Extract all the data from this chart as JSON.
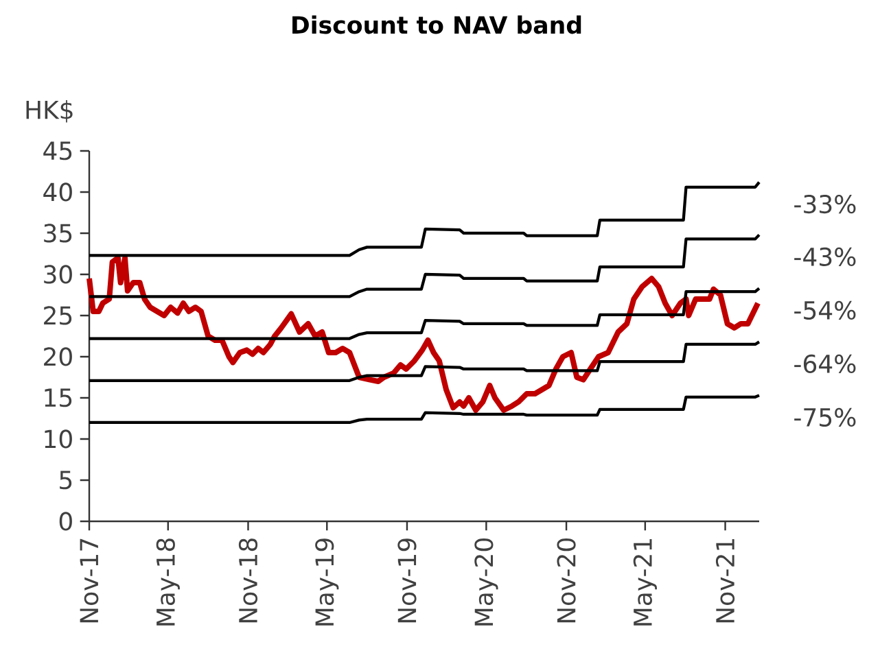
{
  "chart_data": {
    "type": "line",
    "title": "Discount to NAV band",
    "ylabel": "HK$",
    "xlim": [
      "2017-11-01",
      "2022-01-18"
    ],
    "ylim": [
      0,
      45
    ],
    "yticks": [
      0,
      5,
      10,
      15,
      20,
      25,
      30,
      35,
      40,
      45
    ],
    "xticks": [
      {
        "value": "2017-11",
        "label": "Nov-17"
      },
      {
        "value": "2018-05",
        "label": "May-18"
      },
      {
        "value": "2018-11",
        "label": "Nov-18"
      },
      {
        "value": "2019-05",
        "label": "May-19"
      },
      {
        "value": "2019-11",
        "label": "Nov-19"
      },
      {
        "value": "2020-05",
        "label": "May-20"
      },
      {
        "value": "2020-11",
        "label": "Nov-20"
      },
      {
        "value": "2021-05",
        "label": "May-21"
      },
      {
        "value": "2021-11",
        "label": "Nov-21"
      }
    ],
    "grid": false,
    "legend": false,
    "marker": "none",
    "line_style": "solid",
    "series": [
      {
        "color": "#c00000",
        "x": [
          "2017-11-01",
          "2017-11-10",
          "2017-11-23",
          "2017-12-02",
          "2017-12-17",
          "2017-12-24",
          "2018-01-06",
          "2018-01-12",
          "2018-01-22",
          "2018-01-28",
          "2018-02-10",
          "2018-02-25",
          "2018-03-08",
          "2018-03-21",
          "2018-04-06",
          "2018-04-22",
          "2018-05-07",
          "2018-05-23",
          "2018-06-05",
          "2018-06-18",
          "2018-07-03",
          "2018-07-16",
          "2018-08-01",
          "2018-08-17",
          "2018-09-02",
          "2018-09-18",
          "2018-09-27",
          "2018-10-13",
          "2018-10-29",
          "2018-11-11",
          "2018-11-24",
          "2018-12-06",
          "2018-12-22",
          "2019-01-01",
          "2019-01-16",
          "2019-02-08",
          "2019-02-27",
          "2019-03-09",
          "2019-03-19",
          "2019-04-04",
          "2019-04-20",
          "2019-05-05",
          "2019-05-21",
          "2019-06-06",
          "2019-06-22",
          "2019-07-14",
          "2019-08-08",
          "2019-08-27",
          "2019-09-09",
          "2019-10-01",
          "2019-10-17",
          "2019-10-30",
          "2019-11-18",
          "2019-12-06",
          "2019-12-19",
          "2020-01-01",
          "2020-01-14",
          "2020-01-30",
          "2020-02-15",
          "2020-03-01",
          "2020-03-10",
          "2020-03-22",
          "2020-04-07",
          "2020-04-23",
          "2020-05-09",
          "2020-05-21",
          "2020-06-10",
          "2020-06-29",
          "2020-07-14",
          "2020-08-02",
          "2020-08-21",
          "2020-09-06",
          "2020-09-22",
          "2020-10-08",
          "2020-10-24",
          "2020-11-12",
          "2020-11-25",
          "2020-12-10",
          "2020-12-26",
          "2021-01-14",
          "2021-02-05",
          "2021-02-28",
          "2021-03-20",
          "2021-04-05",
          "2021-04-24",
          "2021-05-16",
          "2021-06-01",
          "2021-06-16",
          "2021-07-02",
          "2021-07-21",
          "2021-08-03",
          "2021-08-09",
          "2021-08-25",
          "2021-09-13",
          "2021-09-26",
          "2021-10-05",
          "2021-10-21",
          "2021-11-06",
          "2021-11-22",
          "2021-12-07",
          "2021-12-23",
          "2022-01-15"
        ],
        "values": [
          29.5,
          25.5,
          25.5,
          26.5,
          27,
          31.5,
          32,
          29,
          32,
          28,
          29,
          29,
          27,
          26,
          25.5,
          25,
          26,
          25.3,
          26.5,
          25.5,
          26,
          25.5,
          22.5,
          22,
          22,
          20,
          19.3,
          20.5,
          20.8,
          20.3,
          21,
          20.5,
          21.5,
          22.5,
          23.5,
          25.2,
          23,
          23.5,
          24,
          22.5,
          23,
          20.5,
          20.5,
          21,
          20.5,
          17.5,
          17.2,
          17,
          17.5,
          18,
          19,
          18.5,
          19.5,
          20.8,
          22,
          20.5,
          19.5,
          16,
          13.8,
          14.5,
          14,
          15,
          13.5,
          14.5,
          16.5,
          15,
          13.5,
          14,
          14.5,
          15.5,
          15.5,
          16,
          16.5,
          18.5,
          20,
          20.5,
          17.5,
          17.2,
          18.5,
          20,
          20.5,
          23,
          24,
          27,
          28.5,
          29.5,
          28.5,
          26.5,
          25,
          26.5,
          27,
          25,
          27,
          27,
          27,
          28.2,
          27.5,
          24,
          23.5,
          24,
          24,
          26.5
        ]
      },
      {
        "name": "-33%",
        "color": "#000000",
        "x": [
          "2017-11-01",
          "2019-06-22",
          "2019-07-14",
          "2019-08-01",
          "2019-12-04",
          "2019-12-13",
          "2020-03-01",
          "2020-03-10",
          "2020-07-26",
          "2020-08-02",
          "2021-01-11",
          "2021-01-17",
          "2021-07-28",
          "2021-08-03",
          "2022-01-09",
          "2022-01-18"
        ],
        "values": [
          32.3,
          32.3,
          33.0,
          33.3,
          33.3,
          35.5,
          35.4,
          35.0,
          35.0,
          34.7,
          34.7,
          36.6,
          36.6,
          40.6,
          40.6,
          41.2
        ]
      },
      {
        "name": "-43%",
        "color": "#000000",
        "x": [
          "2017-11-01",
          "2019-06-22",
          "2019-07-14",
          "2019-08-01",
          "2019-12-04",
          "2019-12-13",
          "2020-03-01",
          "2020-03-10",
          "2020-07-26",
          "2020-08-02",
          "2021-01-11",
          "2021-01-17",
          "2021-07-28",
          "2021-08-03",
          "2022-01-09",
          "2022-01-18"
        ],
        "values": [
          27.3,
          27.3,
          27.9,
          28.2,
          28.2,
          30.0,
          29.9,
          29.5,
          29.5,
          29.2,
          29.2,
          30.9,
          30.9,
          34.3,
          34.3,
          34.8
        ]
      },
      {
        "name": "-54%",
        "color": "#000000",
        "x": [
          "2017-11-01",
          "2019-06-22",
          "2019-07-14",
          "2019-08-01",
          "2019-12-04",
          "2019-12-13",
          "2020-03-01",
          "2020-03-10",
          "2020-07-26",
          "2020-08-02",
          "2021-01-11",
          "2021-01-17",
          "2021-07-28",
          "2021-08-03",
          "2022-01-09",
          "2022-01-18"
        ],
        "values": [
          22.2,
          22.2,
          22.7,
          22.9,
          22.9,
          24.4,
          24.3,
          24.0,
          24.0,
          23.8,
          23.8,
          25.1,
          25.1,
          27.9,
          27.9,
          28.3
        ]
      },
      {
        "name": "-64%",
        "color": "#000000",
        "x": [
          "2017-11-01",
          "2019-06-22",
          "2019-07-14",
          "2019-08-01",
          "2019-12-04",
          "2019-12-13",
          "2020-03-01",
          "2020-03-10",
          "2020-07-26",
          "2020-08-02",
          "2021-01-11",
          "2021-01-17",
          "2021-07-28",
          "2021-08-03",
          "2022-01-09",
          "2022-01-18"
        ],
        "values": [
          17.1,
          17.1,
          17.5,
          17.7,
          17.7,
          18.8,
          18.7,
          18.5,
          18.5,
          18.3,
          18.3,
          19.4,
          19.4,
          21.5,
          21.5,
          21.8
        ]
      },
      {
        "name": "-75%",
        "color": "#000000",
        "x": [
          "2017-11-01",
          "2019-06-22",
          "2019-07-14",
          "2019-08-01",
          "2019-12-04",
          "2019-12-13",
          "2020-03-01",
          "2020-03-10",
          "2020-07-26",
          "2020-08-02",
          "2021-01-11",
          "2021-01-17",
          "2021-07-28",
          "2021-08-03",
          "2022-01-09",
          "2022-01-18"
        ],
        "values": [
          12.0,
          12.0,
          12.3,
          12.4,
          12.4,
          13.2,
          13.1,
          13.0,
          13.0,
          12.9,
          12.9,
          13.6,
          13.6,
          15.1,
          15.1,
          15.3
        ]
      }
    ]
  }
}
